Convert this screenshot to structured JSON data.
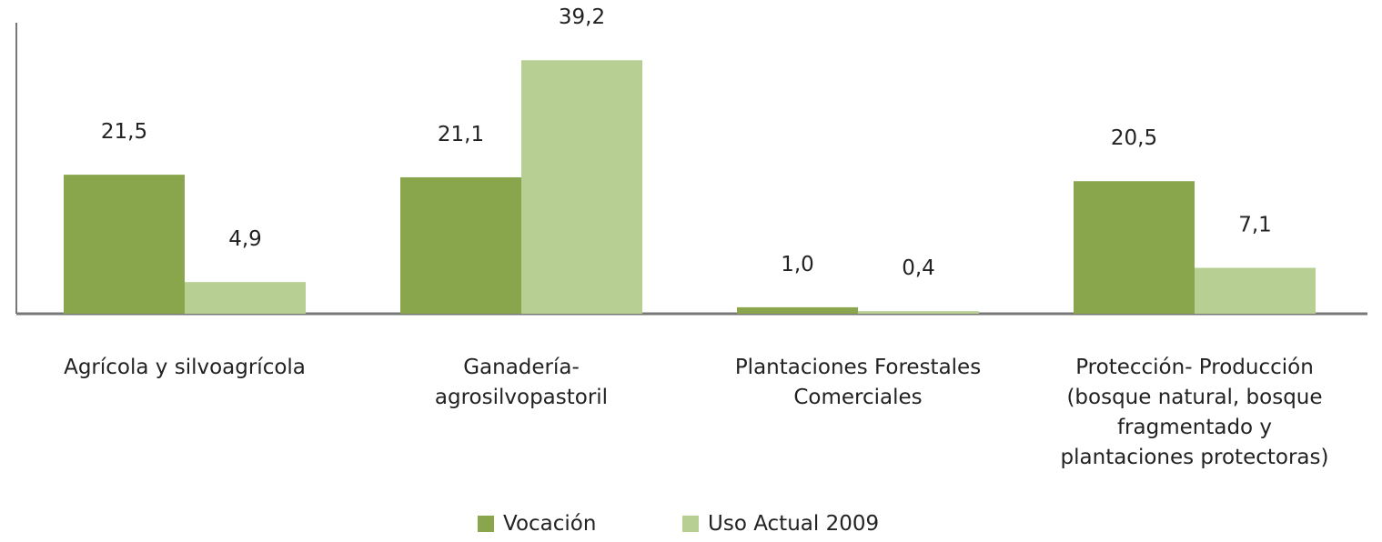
{
  "chart_data": {
    "type": "bar",
    "categories": [
      "Agrícola y silvoagrícola",
      "Ganadería-\nagrosilvopastoril",
      "Plantaciones Forestales\nComerciales",
      "Protección- Producción\n(bosque natural, bosque\nfragmentado y\nplantaciones protectoras)"
    ],
    "series": [
      {
        "name": "Vocación",
        "color": "#8aa64c",
        "values": [
          21.5,
          21.1,
          1.0,
          20.5
        ],
        "value_labels": [
          "21,5",
          "21,1",
          "1,0",
          "20,5"
        ]
      },
      {
        "name": "Uso Actual 2009",
        "color": "#b8cf94",
        "values": [
          4.9,
          39.2,
          0.4,
          7.1
        ],
        "value_labels": [
          "4,9",
          "39,2",
          "0,4",
          "7,1"
        ]
      }
    ],
    "ylim": [
      0,
      45
    ]
  }
}
